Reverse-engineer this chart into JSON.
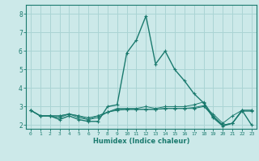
{
  "title": "",
  "xlabel": "Humidex (Indice chaleur)",
  "background_color": "#cce9e9",
  "grid_color": "#aad4d4",
  "line_color": "#1a7a6e",
  "xlim": [
    -0.5,
    23.5
  ],
  "ylim": [
    1.8,
    8.5
  ],
  "xticks": [
    0,
    1,
    2,
    3,
    4,
    5,
    6,
    7,
    8,
    9,
    10,
    11,
    12,
    13,
    14,
    15,
    16,
    17,
    18,
    19,
    20,
    21,
    22,
    23
  ],
  "yticks": [
    2,
    3,
    4,
    5,
    6,
    7,
    8
  ],
  "lines": [
    {
      "x": [
        0,
        1,
        2,
        3,
        4,
        5,
        6,
        7,
        8,
        9,
        10,
        11,
        12,
        13,
        14,
        15,
        16,
        17,
        18,
        19,
        20,
        21,
        22,
        23
      ],
      "y": [
        2.8,
        2.5,
        2.5,
        2.3,
        2.5,
        2.3,
        2.2,
        2.2,
        3.0,
        3.1,
        5.9,
        6.6,
        7.9,
        5.3,
        6.0,
        5.0,
        4.4,
        3.7,
        3.2,
        2.4,
        1.95,
        2.1,
        2.8,
        2.0
      ]
    },
    {
      "x": [
        0,
        1,
        2,
        3,
        4,
        5,
        6,
        7,
        8,
        9,
        10,
        11,
        12,
        13,
        14,
        15,
        16,
        17,
        18,
        19,
        20,
        21,
        22,
        23
      ],
      "y": [
        2.8,
        2.5,
        2.5,
        2.5,
        2.6,
        2.5,
        2.4,
        2.5,
        2.7,
        2.8,
        2.85,
        2.85,
        2.85,
        2.85,
        2.9,
        2.9,
        2.9,
        2.9,
        3.0,
        2.6,
        2.1,
        2.5,
        2.8,
        2.8
      ]
    },
    {
      "x": [
        0,
        1,
        2,
        3,
        4,
        5,
        6,
        7,
        8,
        9,
        10,
        11,
        12,
        13,
        14,
        15,
        16,
        17,
        18,
        19,
        20,
        21,
        22,
        23
      ],
      "y": [
        2.8,
        2.5,
        2.5,
        2.5,
        2.6,
        2.5,
        2.3,
        2.5,
        2.7,
        2.85,
        2.85,
        2.85,
        2.85,
        2.85,
        2.9,
        2.9,
        2.9,
        2.95,
        3.05,
        2.45,
        2.0,
        2.1,
        2.75,
        2.75
      ]
    },
    {
      "x": [
        0,
        1,
        2,
        3,
        4,
        5,
        6,
        7,
        8,
        9,
        10,
        11,
        12,
        13,
        14,
        15,
        16,
        17,
        18,
        19,
        20,
        21,
        22,
        23
      ],
      "y": [
        2.8,
        2.5,
        2.5,
        2.4,
        2.6,
        2.4,
        2.3,
        2.4,
        2.7,
        2.9,
        2.9,
        2.9,
        3.0,
        2.9,
        3.0,
        3.0,
        3.0,
        3.1,
        3.25,
        2.5,
        2.0,
        2.1,
        2.8,
        2.8
      ]
    }
  ]
}
